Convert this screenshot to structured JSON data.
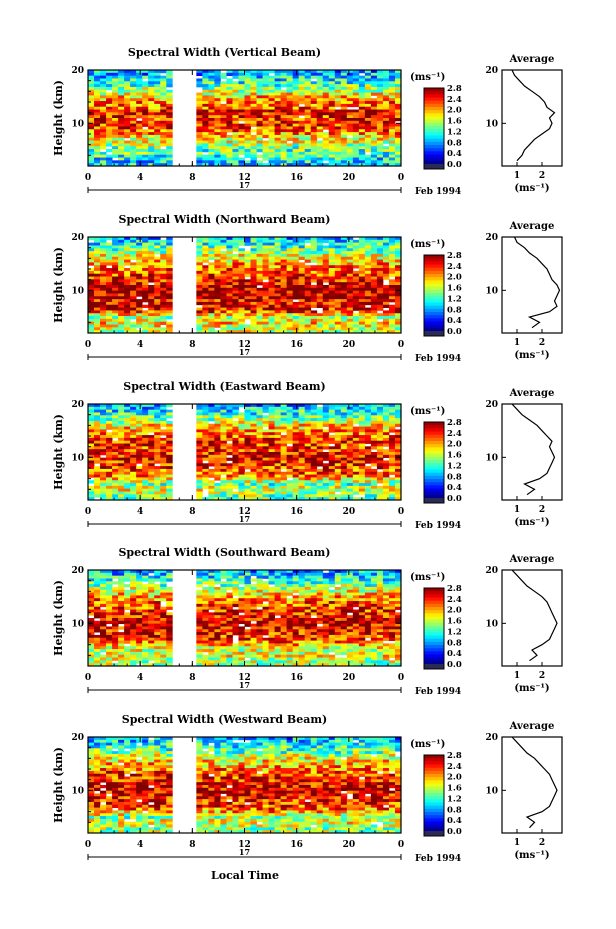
{
  "figure": {
    "xlabel": "Local Time",
    "date_label": "Feb 1994",
    "day_label": "17",
    "colorbar_unit": "(ms⁻¹)",
    "avg_unit": "(ms⁻¹)"
  },
  "chart_data": [
    {
      "type": "heatmap",
      "title": "Spectral Width (Vertical Beam)",
      "xlabel": "Local Time",
      "ylabel": "Height (km)",
      "x_ticks": [
        "0",
        "4",
        "8",
        "12",
        "16",
        "20",
        "0"
      ],
      "x_range": [
        0,
        24
      ],
      "y_ticks": [
        "20",
        "10"
      ],
      "y_range": [
        2,
        20
      ],
      "data_gap_hours": [
        6.5,
        8.5
      ],
      "colorbar": {
        "ticks": [
          "2.8",
          "2.4",
          "2.0",
          "1.6",
          "1.2",
          "0.8",
          "0.4",
          "0.0"
        ],
        "range": [
          0.0,
          2.8
        ]
      },
      "profile": {
        "title": "Average",
        "x_ticks": [
          "1",
          "2"
        ],
        "x_range": [
          0.4,
          2.8
        ],
        "heights_km": [
          3,
          4,
          5,
          6,
          7,
          8,
          9,
          10,
          11,
          12,
          13,
          14,
          15,
          16,
          17,
          18,
          19,
          20
        ],
        "widths_ms": [
          1.0,
          1.2,
          1.3,
          1.5,
          1.7,
          2.0,
          2.3,
          2.4,
          2.3,
          2.5,
          2.2,
          2.1,
          1.9,
          1.6,
          1.3,
          1.1,
          0.9,
          0.8
        ]
      }
    },
    {
      "type": "heatmap",
      "title": "Spectral Width (Northward Beam)",
      "xlabel": "",
      "ylabel": "Height (km)",
      "x_ticks": [
        "0",
        "4",
        "8",
        "12",
        "16",
        "20",
        "0"
      ],
      "x_range": [
        0,
        24
      ],
      "y_ticks": [
        "20",
        "10"
      ],
      "y_range": [
        2,
        20
      ],
      "data_gap_hours": [
        6.5,
        8.5
      ],
      "colorbar": {
        "ticks": [
          "2.8",
          "2.4",
          "2.0",
          "1.6",
          "1.2",
          "0.8",
          "0.4",
          "0.0"
        ],
        "range": [
          0.0,
          2.8
        ]
      },
      "profile": {
        "title": "Average",
        "x_ticks": [
          "1",
          "2"
        ],
        "x_range": [
          0.4,
          2.8
        ],
        "heights_km": [
          3,
          4,
          5,
          6,
          7,
          8,
          9,
          10,
          11,
          12,
          13,
          14,
          15,
          16,
          17,
          18,
          19,
          20
        ],
        "widths_ms": [
          1.6,
          1.9,
          1.5,
          2.3,
          2.6,
          2.5,
          2.6,
          2.7,
          2.6,
          2.4,
          2.3,
          2.2,
          2.0,
          1.8,
          1.5,
          1.3,
          1.0,
          0.9
        ]
      }
    },
    {
      "type": "heatmap",
      "title": "Spectral Width (Eastward Beam)",
      "xlabel": "",
      "ylabel": "Height (km)",
      "x_ticks": [
        "0",
        "4",
        "8",
        "12",
        "16",
        "20",
        "0"
      ],
      "x_range": [
        0,
        24
      ],
      "y_ticks": [
        "20",
        "10"
      ],
      "y_range": [
        2,
        20
      ],
      "data_gap_hours": [
        6.5,
        8.5
      ],
      "colorbar": {
        "ticks": [
          "2.8",
          "2.4",
          "2.0",
          "1.6",
          "1.2",
          "0.8",
          "0.4",
          "0.0"
        ],
        "range": [
          0.0,
          2.8
        ]
      },
      "profile": {
        "title": "Average",
        "x_ticks": [
          "1",
          "2"
        ],
        "x_range": [
          0.4,
          2.8
        ],
        "heights_km": [
          3,
          4,
          5,
          6,
          7,
          8,
          9,
          10,
          11,
          12,
          13,
          14,
          15,
          16,
          17,
          18,
          19,
          20
        ],
        "widths_ms": [
          1.4,
          1.7,
          1.3,
          1.9,
          2.2,
          2.3,
          2.4,
          2.5,
          2.4,
          2.3,
          2.4,
          2.2,
          2.0,
          1.8,
          1.5,
          1.2,
          1.0,
          0.8
        ]
      }
    },
    {
      "type": "heatmap",
      "title": "Spectral Width (Southward Beam)",
      "xlabel": "",
      "ylabel": "Height (km)",
      "x_ticks": [
        "0",
        "4",
        "8",
        "12",
        "16",
        "20",
        "0"
      ],
      "x_range": [
        0,
        24
      ],
      "y_ticks": [
        "20",
        "10"
      ],
      "y_range": [
        2,
        20
      ],
      "data_gap_hours": [
        6.5,
        8.5
      ],
      "colorbar": {
        "ticks": [
          "2.8",
          "2.4",
          "2.0",
          "1.6",
          "1.2",
          "0.8",
          "0.4",
          "0.0"
        ],
        "range": [
          0.0,
          2.8
        ]
      },
      "profile": {
        "title": "Average",
        "x_ticks": [
          "1",
          "2"
        ],
        "x_range": [
          0.4,
          2.8
        ],
        "heights_km": [
          3,
          4,
          5,
          6,
          7,
          8,
          9,
          10,
          11,
          12,
          13,
          14,
          15,
          16,
          17,
          18,
          19,
          20
        ],
        "widths_ms": [
          1.5,
          1.8,
          1.6,
          2.0,
          2.3,
          2.4,
          2.5,
          2.6,
          2.5,
          2.4,
          2.3,
          2.2,
          2.0,
          1.7,
          1.4,
          1.2,
          1.0,
          0.8
        ]
      }
    },
    {
      "type": "heatmap",
      "title": "Spectral Width (Westward Beam)",
      "xlabel": "Local Time",
      "ylabel": "Height (km)",
      "x_ticks": [
        "0",
        "4",
        "8",
        "12",
        "16",
        "20",
        "0"
      ],
      "x_range": [
        0,
        24
      ],
      "y_ticks": [
        "20",
        "10"
      ],
      "y_range": [
        2,
        20
      ],
      "data_gap_hours": [
        6.5,
        8.5
      ],
      "colorbar": {
        "ticks": [
          "2.8",
          "2.4",
          "2.0",
          "1.6",
          "1.2",
          "0.8",
          "0.4",
          "0.0"
        ],
        "range": [
          0.0,
          2.8
        ]
      },
      "profile": {
        "title": "Average",
        "x_ticks": [
          "1",
          "2"
        ],
        "x_range": [
          0.4,
          2.8
        ],
        "heights_km": [
          3,
          4,
          5,
          6,
          7,
          8,
          9,
          10,
          11,
          12,
          13,
          14,
          15,
          16,
          17,
          18,
          19,
          20
        ],
        "widths_ms": [
          1.5,
          1.7,
          1.4,
          2.0,
          2.3,
          2.4,
          2.5,
          2.6,
          2.5,
          2.4,
          2.3,
          2.1,
          1.9,
          1.7,
          1.4,
          1.2,
          1.0,
          0.8
        ]
      }
    }
  ]
}
